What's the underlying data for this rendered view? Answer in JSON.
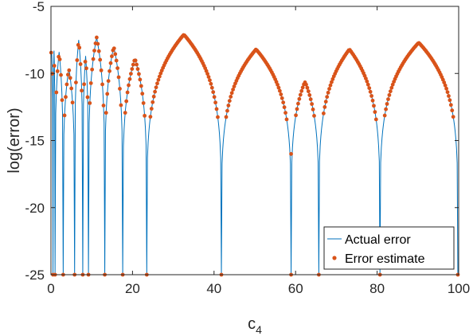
{
  "chart_data": {
    "type": "line",
    "title": "",
    "xlabel": "c",
    "xlabel_subscript": "4",
    "ylabel": "log(error)",
    "xlim": [
      0,
      100
    ],
    "ylim": [
      -25,
      -5
    ],
    "x_ticks": [
      "0",
      "20",
      "40",
      "60",
      "80",
      "100"
    ],
    "y_ticks": [
      "-5",
      "-10",
      "-15",
      "-20",
      "-25"
    ],
    "grid": false,
    "legend_position": "bottom-right",
    "zeros": [
      0.5,
      1.0,
      3.0,
      5.8,
      7.8,
      9.2,
      13.2,
      17.6,
      23.5,
      41.8,
      58.9,
      65.7,
      80.7,
      99.8
    ],
    "series": [
      {
        "name": "Actual error",
        "color": "#0072BD",
        "style": "line",
        "local_maxima": [
          {
            "x": 0.2,
            "y": -8.4
          },
          {
            "x": 0.75,
            "y": -8.3
          },
          {
            "x": 2.0,
            "y": -8.4
          },
          {
            "x": 4.4,
            "y": -9.6
          },
          {
            "x": 6.8,
            "y": -7.5
          },
          {
            "x": 8.5,
            "y": -8.7
          },
          {
            "x": 11.2,
            "y": -7.3
          },
          {
            "x": 15.4,
            "y": -8.0
          },
          {
            "x": 20.6,
            "y": -8.9
          },
          {
            "x": 32.6,
            "y": -7.1
          },
          {
            "x": 50.3,
            "y": -8.2
          },
          {
            "x": 62.3,
            "y": -10.6
          },
          {
            "x": 73.2,
            "y": -8.2
          },
          {
            "x": 90.2,
            "y": -7.7
          }
        ]
      },
      {
        "name": "Error estimate",
        "color": "#D95319",
        "style": "markers",
        "local_maxima_same_as": "Actual error",
        "notable_points": [
          {
            "x": 58.9,
            "y": -16.0
          }
        ]
      }
    ]
  }
}
